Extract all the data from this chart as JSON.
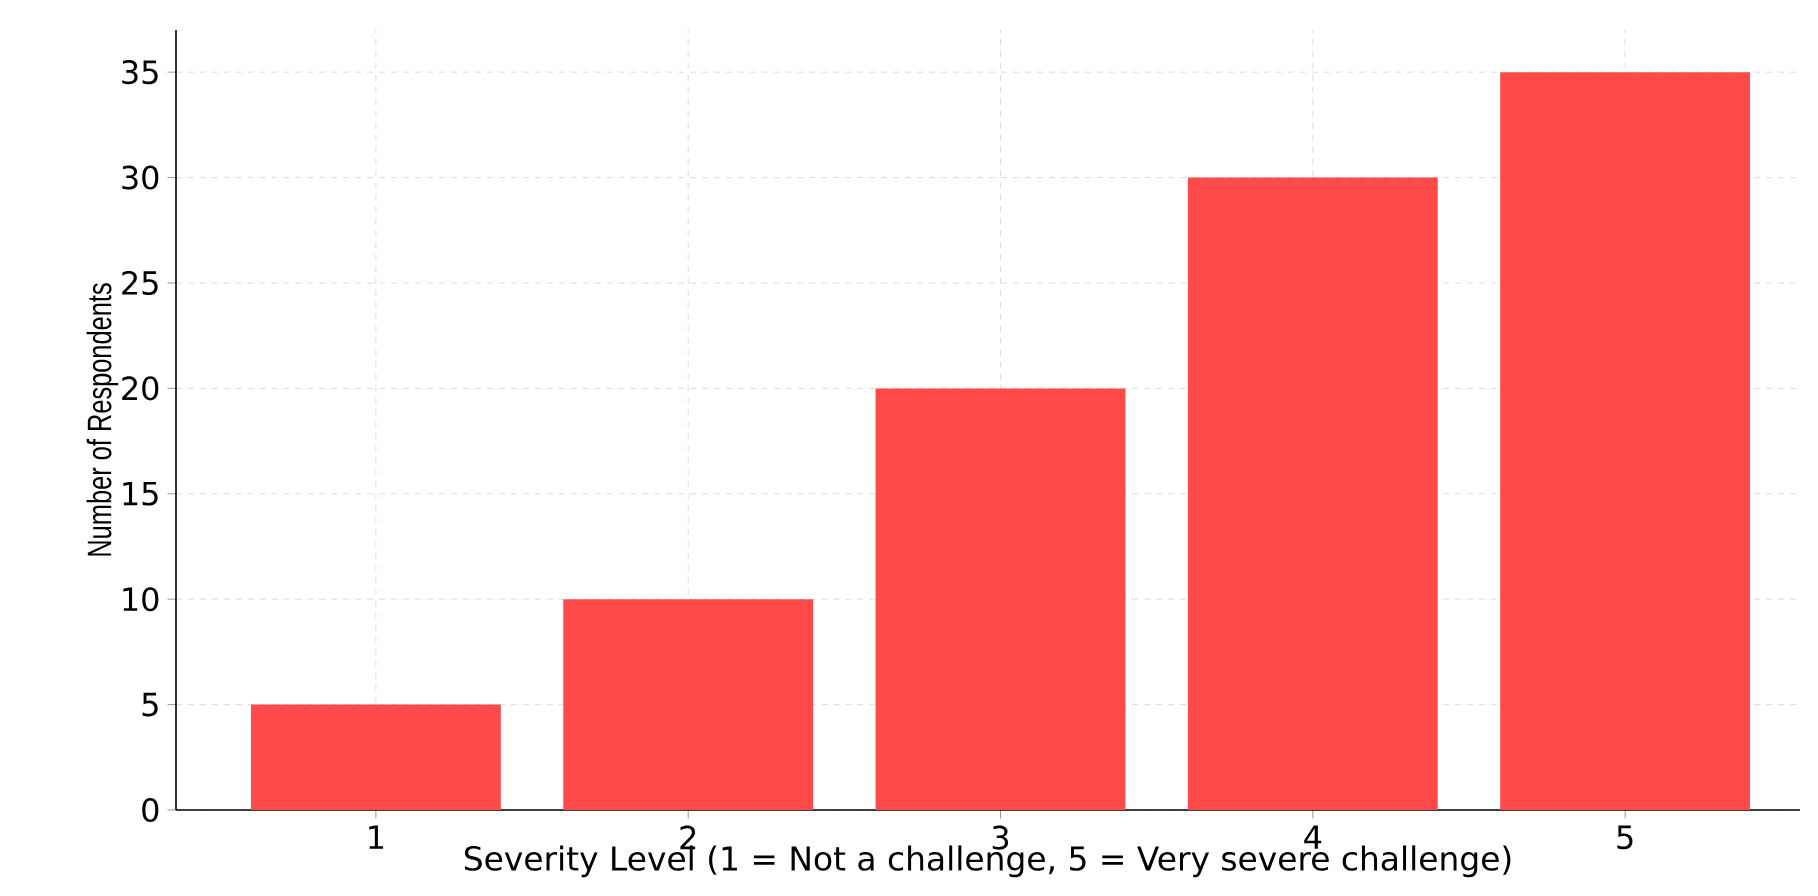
{
  "chart_data": {
    "type": "bar",
    "xlabel": "Severity Level (1 = Not a challenge, 5 = Very severe challenge)",
    "ylabel": "Number of Respondents",
    "categories": [
      "1",
      "2",
      "3",
      "4",
      "5"
    ],
    "values": [
      5,
      10,
      20,
      30,
      35
    ],
    "color": "#ff4a4a",
    "ylim": [
      0,
      37
    ],
    "yticks": [
      0,
      5,
      10,
      15,
      20,
      25,
      30,
      35
    ],
    "grid": true
  }
}
